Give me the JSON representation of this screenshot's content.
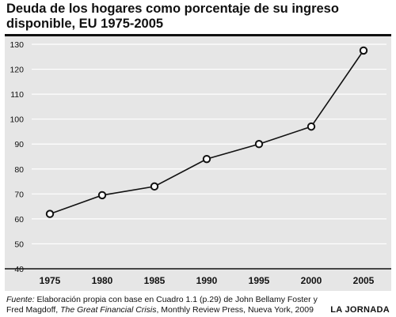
{
  "chart_data": {
    "type": "line",
    "title": "Deuda de los hogares como porcentaje de su ingreso disponible, EU 1975-2005",
    "xlabel": "",
    "ylabel": "",
    "categories": [
      "1975",
      "1980",
      "1985",
      "1990",
      "1995",
      "2000",
      "2005"
    ],
    "series": [
      {
        "values": [
          62,
          69.5,
          73,
          84,
          90,
          97,
          127.5
        ]
      }
    ],
    "ylim": [
      40,
      130
    ],
    "yticks": [
      40,
      50,
      60,
      70,
      80,
      90,
      100,
      110,
      120,
      130
    ],
    "ytick_labels": [
      "40",
      "50",
      "60",
      "70",
      "80",
      "90",
      "100",
      "110",
      "120",
      "130"
    ],
    "grid": true,
    "marker": "open-circle",
    "colors": {
      "line": "#111111",
      "background": "#e6e6e6",
      "grid": "#ffffff"
    }
  },
  "footer": {
    "source_label": "Fuente:",
    "source_part1": " Elaboración propia con base en Cuadro 1.1 (p.29) de John Bellamy Foster y Fred Magdoff, ",
    "source_book": "The Great Financial Crisis",
    "source_part2": ", Monthly Review Press, Nueva York, 2009",
    "brand": "LA JORNADA"
  }
}
